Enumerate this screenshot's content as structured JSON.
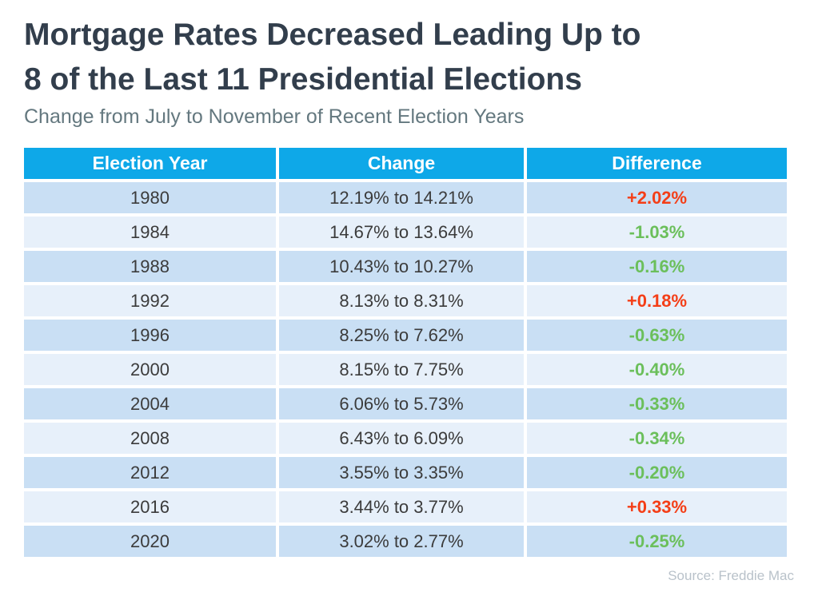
{
  "header": {
    "title_line1": "Mortgage Rates Decreased Leading Up to",
    "title_line2": "8 of the Last 11 Presidential Elections",
    "subtitle": "Change from July to November of Recent Election Years"
  },
  "table": {
    "columns": [
      "Election Year",
      "Change",
      "Difference"
    ],
    "rows": [
      {
        "year": "1980",
        "change": "12.19% to 14.21%",
        "difference": "+2.02%"
      },
      {
        "year": "1984",
        "change": "14.67% to 13.64%",
        "difference": "-1.03%"
      },
      {
        "year": "1988",
        "change": "10.43% to 10.27%",
        "difference": "-0.16%"
      },
      {
        "year": "1992",
        "change": "8.13% to 8.31%",
        "difference": "+0.18%"
      },
      {
        "year": "1996",
        "change": "8.25% to 7.62%",
        "difference": "-0.63%"
      },
      {
        "year": "2000",
        "change": "8.15% to 7.75%",
        "difference": "-0.40%"
      },
      {
        "year": "2004",
        "change": "6.06% to 5.73%",
        "difference": "-0.33%"
      },
      {
        "year": "2008",
        "change": "6.43% to 6.09%",
        "difference": "-0.34%"
      },
      {
        "year": "2012",
        "change": "3.55% to 3.35%",
        "difference": "-0.20%"
      },
      {
        "year": "2016",
        "change": "3.44% to 3.77%",
        "difference": "+0.33%"
      },
      {
        "year": "2020",
        "change": "3.02% to 2.77%",
        "difference": "-0.25%"
      }
    ]
  },
  "footer": {
    "source": "Source: Freddie Mac"
  },
  "colors": {
    "header_bg": "#0EA8E8",
    "row_dark": "#C9DFF4",
    "row_light": "#E7F0FA",
    "positive": "#F43E17",
    "negative": "#6BBF5B",
    "title_color": "#323E4C",
    "subtitle_color": "#64787F",
    "body_text": "#3B3B3B",
    "source_color": "#B9C2CA"
  },
  "chart_data": {
    "type": "table",
    "title": "Mortgage Rates Decreased Leading Up to 8 of the Last 11 Presidential Elections",
    "subtitle": "Change from July to November of Recent Election Years",
    "columns": [
      "Election Year",
      "Change",
      "Difference"
    ],
    "rows": [
      [
        "1980",
        "12.19% to 14.21%",
        "+2.02%"
      ],
      [
        "1984",
        "14.67% to 13.64%",
        "-1.03%"
      ],
      [
        "1988",
        "10.43% to 10.27%",
        "-0.16%"
      ],
      [
        "1992",
        "8.13% to 8.31%",
        "+0.18%"
      ],
      [
        "1996",
        "8.25% to 7.62%",
        "-0.63%"
      ],
      [
        "2000",
        "8.15% to 7.75%",
        "-0.40%"
      ],
      [
        "2004",
        "6.06% to 5.73%",
        "-0.33%"
      ],
      [
        "2008",
        "6.43% to 6.09%",
        "-0.34%"
      ],
      [
        "2012",
        "3.55% to 3.35%",
        "-0.20%"
      ],
      [
        "2016",
        "3.44% to 3.77%",
        "+0.33%"
      ],
      [
        "2020",
        "3.02% to 2.77%",
        "-0.25%"
      ]
    ],
    "difference_values": [
      2.02,
      -1.03,
      -0.16,
      0.18,
      -0.63,
      -0.4,
      -0.33,
      -0.34,
      -0.2,
      0.33,
      -0.25
    ],
    "source": "Source: Freddie Mac",
    "legend_position": "none",
    "notes": "Positive differences shown in red-orange, negative in green; rows alternate light blue shades"
  }
}
